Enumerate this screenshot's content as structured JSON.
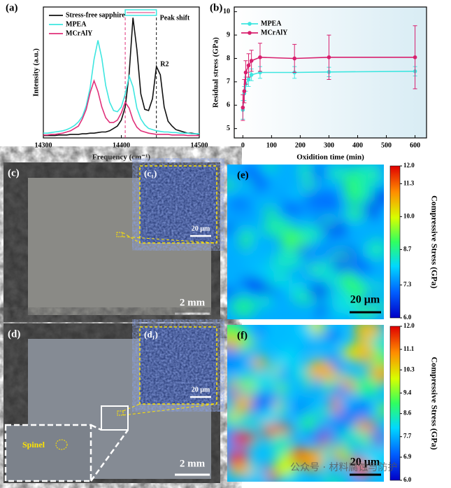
{
  "chart_data": [
    {
      "type": "line",
      "panel_label": "(a)",
      "x_label": "Frequency (cm⁻¹)",
      "y_label": "Intensity (a.u.)",
      "x": [
        14300,
        14305,
        14310,
        14315,
        14320,
        14325,
        14330,
        14335,
        14340,
        14345,
        14350,
        14355,
        14360,
        14365,
        14370,
        14375,
        14380,
        14385,
        14390,
        14395,
        14400,
        14405,
        14410,
        14415,
        14420,
        14425,
        14430,
        14435,
        14440,
        14445,
        14450,
        14455,
        14460,
        14465,
        14470,
        14475,
        14480,
        14485,
        14490,
        14495,
        14500
      ],
      "series": [
        {
          "name": "Stress-free sapphire",
          "color": "#111111",
          "values": [
            0.02,
            0.02,
            0.02,
            0.02,
            0.025,
            0.025,
            0.025,
            0.03,
            0.03,
            0.03,
            0.035,
            0.035,
            0.04,
            0.04,
            0.045,
            0.05,
            0.05,
            0.06,
            0.08,
            0.1,
            0.15,
            0.26,
            0.54,
            1.01,
            0.74,
            0.37,
            0.24,
            0.23,
            0.33,
            0.6,
            0.53,
            0.26,
            0.14,
            0.1,
            0.07,
            0.06,
            0.05,
            0.04,
            0.04,
            0.035,
            0.03
          ]
        },
        {
          "name": "MPEA",
          "color": "#3ee6e0",
          "values": [
            0.04,
            0.04,
            0.045,
            0.05,
            0.055,
            0.06,
            0.07,
            0.085,
            0.105,
            0.135,
            0.18,
            0.27,
            0.42,
            0.66,
            0.82,
            0.67,
            0.44,
            0.3,
            0.23,
            0.22,
            0.26,
            0.37,
            0.52,
            0.43,
            0.25,
            0.16,
            0.11,
            0.08,
            0.07,
            0.06,
            0.055,
            0.05,
            0.05,
            0.045,
            0.045,
            0.04,
            0.04,
            0.04,
            0.035,
            0.035,
            0.035
          ]
        },
        {
          "name": "MCrAlY",
          "color": "#e0307a",
          "values": [
            0.025,
            0.025,
            0.03,
            0.03,
            0.035,
            0.04,
            0.05,
            0.06,
            0.08,
            0.1,
            0.16,
            0.24,
            0.38,
            0.48,
            0.39,
            0.26,
            0.17,
            0.13,
            0.13,
            0.15,
            0.21,
            0.3,
            0.25,
            0.15,
            0.09,
            0.06,
            0.05,
            0.04,
            0.035,
            0.03,
            0.03,
            0.03,
            0.03,
            0.025,
            0.025,
            0.025,
            0.025,
            0.02,
            0.02,
            0.02,
            0.02
          ]
        }
      ],
      "annotations": [
        "Peak shift",
        "R2"
      ],
      "xlim": [
        14300,
        14500
      ],
      "xticks": [
        14300,
        14400,
        14500
      ],
      "ylim": [
        0,
        1.1
      ],
      "legend": "upper-left"
    },
    {
      "type": "line",
      "panel_label": "(b)",
      "x_label": "Oxidition time (min)",
      "y_label": "Residual stress (GPa)",
      "x": [
        0,
        5,
        10,
        20,
        30,
        60,
        180,
        300,
        600
      ],
      "series": [
        {
          "name": "MPEA",
          "color": "#3ee6e0",
          "values": [
            5.8,
            6.5,
            6.9,
            7.1,
            7.3,
            7.4,
            7.4,
            7.42,
            7.45
          ],
          "errors": [
            0.4,
            0.3,
            0.3,
            0.3,
            0.25,
            0.25,
            0.25,
            0.2,
            0.2
          ]
        },
        {
          "name": "MCrAlY",
          "color": "#d8206e",
          "values": [
            5.9,
            6.6,
            7.4,
            7.7,
            7.9,
            8.05,
            8.0,
            8.05,
            8.05
          ],
          "errors": [
            0.55,
            0.5,
            0.5,
            0.5,
            0.45,
            0.6,
            0.6,
            0.95,
            1.35
          ]
        }
      ],
      "xlim": [
        -30,
        640
      ],
      "xticks": [
        0,
        100,
        200,
        300,
        400,
        500,
        600
      ],
      "ylim": [
        4.6,
        10.2
      ],
      "yticks": [
        5,
        6,
        7,
        8,
        9,
        10
      ],
      "legend": "upper-left"
    }
  ],
  "micrographs": [
    {
      "label": "(c)",
      "inset_label": "(c₁)",
      "scale_bar": "2 mm",
      "inset_scale_bar": "20 μm"
    },
    {
      "label": "(d)",
      "inset_label": "(d₁)",
      "scale_bar": "2 mm",
      "inset_scale_bar": "20 μm",
      "note": "Spinel"
    }
  ],
  "stress_maps": [
    {
      "label": "(e)",
      "scale_bar": "20 μm",
      "colorbar_title": "Compressive Stress (GPa)",
      "lim": [
        6,
        12
      ],
      "ticks": [
        {
          "value": 6,
          "label": "6.0"
        },
        7.3,
        8.7,
        {
          "value": 10,
          "label": "10.0"
        },
        11.3,
        {
          "value": 12,
          "label": "12.0"
        }
      ]
    },
    {
      "label": "(f)",
      "scale_bar": "20 μm",
      "colorbar_title": "Compressive Stress (GPa)",
      "lim": [
        6,
        12
      ],
      "ticks": [
        {
          "value": 6,
          "label": "6.0"
        },
        6.9,
        7.7,
        8.6,
        9.4,
        10.3,
        11.1,
        {
          "value": 12,
          "label": "12.0"
        }
      ]
    }
  ],
  "watermark": "公众号 · 材料腐蚀与防护"
}
